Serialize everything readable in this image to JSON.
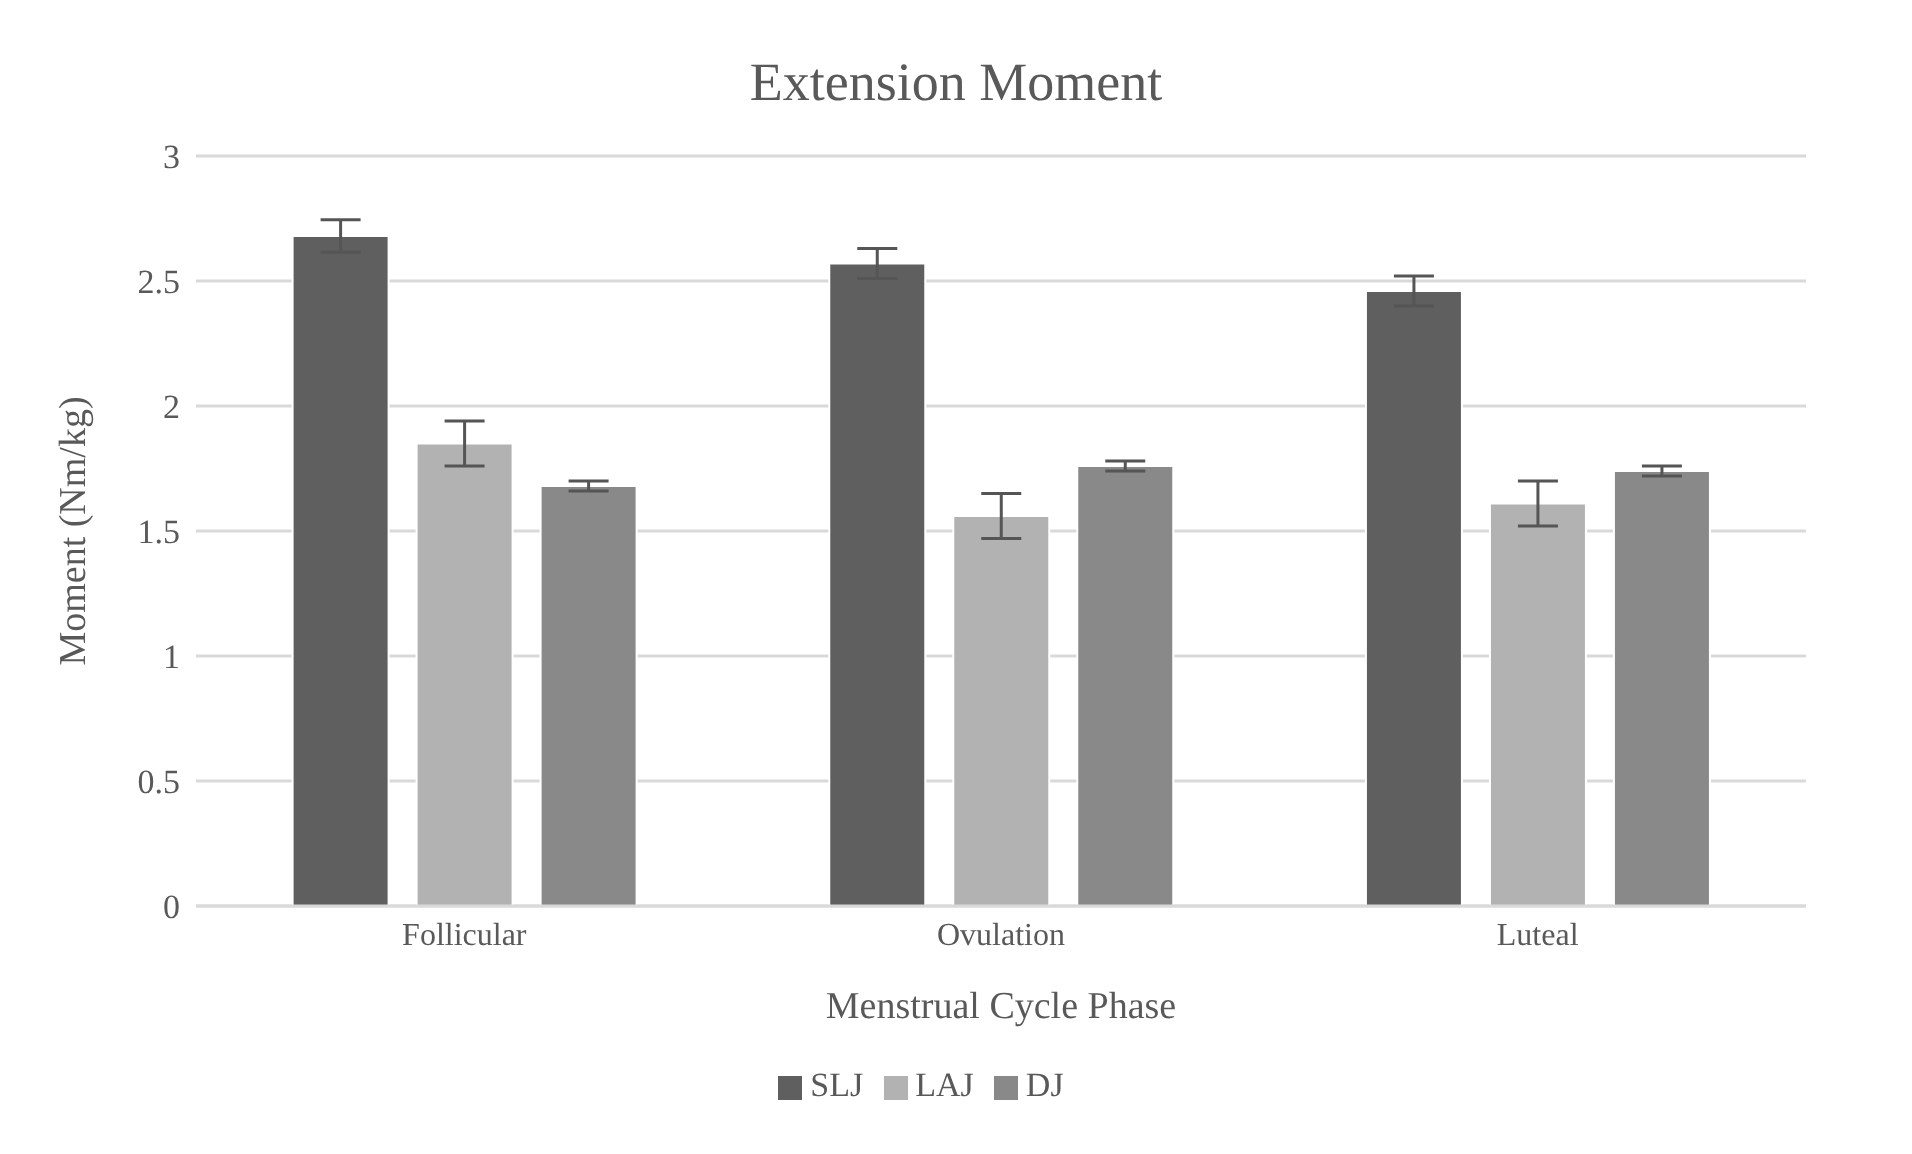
{
  "chart_data": {
    "type": "bar",
    "title": "Extension Moment",
    "xlabel": "Menstrual Cycle Phase",
    "ylabel": "Moment (Nm/kg)",
    "categories": [
      "Follicular",
      "Ovulation",
      "Luteal"
    ],
    "series": [
      {
        "name": "SLJ",
        "color": "#5f5f5f",
        "values": [
          2.68,
          2.57,
          2.46
        ],
        "errors": [
          0.065,
          0.06,
          0.06
        ]
      },
      {
        "name": "LAJ",
        "color": "#b2b2b2",
        "values": [
          1.85,
          1.56,
          1.61
        ],
        "errors": [
          0.09,
          0.09,
          0.09
        ]
      },
      {
        "name": "DJ",
        "color": "#898989",
        "values": [
          1.68,
          1.76,
          1.74
        ],
        "errors": [
          0.02,
          0.02,
          0.02
        ]
      }
    ],
    "ylim": [
      0,
      3
    ],
    "yticks": [
      0,
      0.5,
      1,
      1.5,
      2,
      2.5,
      3
    ],
    "grid": "y",
    "legend": "bottom"
  }
}
